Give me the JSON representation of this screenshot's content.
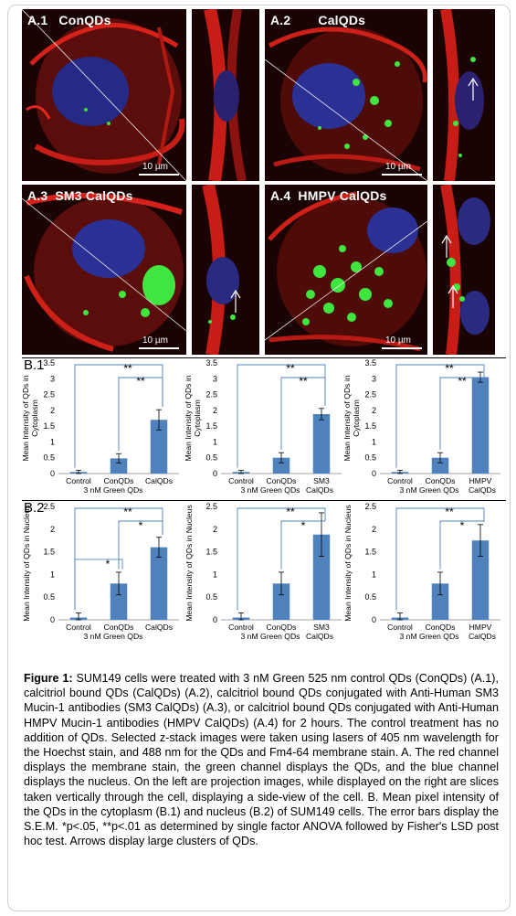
{
  "panels": [
    {
      "id": "A.1",
      "name": "ConQDs",
      "scale": "10 µm"
    },
    {
      "id": "A.2",
      "name": "CalQDs",
      "scale": "10 µm"
    },
    {
      "id": "A.3",
      "name": "SM3 CalQDs",
      "scale": "10 µm"
    },
    {
      "id": "A.4",
      "name": "HMPV CalQDs",
      "scale": "10 µm"
    }
  ],
  "section_labels": {
    "b1": "B.1",
    "b2": "B.2"
  },
  "chart_data": [
    {
      "type": "bar",
      "row": "B.1",
      "ylabel": "Mean Intensity of QDs in Cytoplasm",
      "xlabel": "3 nM Green QDs",
      "ylim": [
        0,
        3.5
      ],
      "yticks": [
        0,
        0.5,
        1,
        1.5,
        2,
        2.5,
        3,
        3.5
      ],
      "categories": [
        "Control",
        "ConQDs",
        "CalQDs"
      ],
      "values": [
        0.05,
        0.48,
        1.7
      ],
      "errors": [
        0.05,
        0.15,
        0.32
      ],
      "significance": [
        {
          "from": 0,
          "to": 2,
          "label": "**"
        },
        {
          "from": 1,
          "to": 2,
          "label": "**"
        }
      ]
    },
    {
      "type": "bar",
      "row": "B.1",
      "ylabel": "Mean Intensity of QDs in Cytoplasm",
      "xlabel": "3 nM Green QDs",
      "ylim": [
        0,
        3.5
      ],
      "yticks": [
        0,
        0.5,
        1,
        1.5,
        2,
        2.5,
        3,
        3.5
      ],
      "categories": [
        "Control",
        "ConQDs",
        "SM3CalQDs"
      ],
      "values": [
        0.05,
        0.5,
        1.88
      ],
      "errors": [
        0.05,
        0.16,
        0.18
      ],
      "significance": [
        {
          "from": 0,
          "to": 2,
          "label": "**"
        },
        {
          "from": 1,
          "to": 2,
          "label": "**"
        }
      ]
    },
    {
      "type": "bar",
      "row": "B.1",
      "ylabel": "Mean Intensity of QDs in Cytoplasm",
      "xlabel": "3 nM Green QDs",
      "ylim": [
        0,
        3.5
      ],
      "yticks": [
        0,
        0.5,
        1,
        1.5,
        2,
        2.5,
        3,
        3.5
      ],
      "categories": [
        "Control",
        "ConQDs",
        "HMPVCalQDs"
      ],
      "values": [
        0.05,
        0.5,
        3.05
      ],
      "errors": [
        0.05,
        0.16,
        0.16
      ],
      "significance": [
        {
          "from": 0,
          "to": 2,
          "label": "**"
        },
        {
          "from": 1,
          "to": 2,
          "label": "**"
        }
      ]
    },
    {
      "type": "bar",
      "row": "B.2",
      "ylabel": "Mean Intensity of QDs in Nucleus",
      "xlabel": "3 nM Green QDs",
      "ylim": [
        0,
        2.5
      ],
      "yticks": [
        0,
        0.5,
        1,
        1.5,
        2,
        2.5
      ],
      "categories": [
        "Control",
        "ConQDs",
        "CalQDs"
      ],
      "values": [
        0.05,
        0.8,
        1.6
      ],
      "errors": [
        0.1,
        0.25,
        0.22
      ],
      "significance": [
        {
          "from": 0,
          "to": 2,
          "label": "**"
        },
        {
          "from": 1,
          "to": 2,
          "label": "*"
        },
        {
          "from": 0,
          "to": 1,
          "label": "*"
        }
      ]
    },
    {
      "type": "bar",
      "row": "B.2",
      "ylabel": "Mean Intensity of QDs in Nucleus",
      "xlabel": "3 nM Green QDs",
      "ylim": [
        0,
        2.5
      ],
      "yticks": [
        0,
        0.5,
        1,
        1.5,
        2,
        2.5
      ],
      "categories": [
        "Control",
        "ConQDs",
        "SM3CalQDs"
      ],
      "values": [
        0.05,
        0.8,
        1.88
      ],
      "errors": [
        0.1,
        0.25,
        0.48
      ],
      "significance": [
        {
          "from": 0,
          "to": 2,
          "label": "**"
        },
        {
          "from": 1,
          "to": 2,
          "label": "*"
        }
      ]
    },
    {
      "type": "bar",
      "row": "B.2",
      "ylabel": "Mean Intensity of QDs in Nucleus",
      "xlabel": "3 nM Green QDs",
      "ylim": [
        0,
        2.5
      ],
      "yticks": [
        0,
        0.5,
        1,
        1.5,
        2,
        2.5
      ],
      "categories": [
        "Control",
        "ConQDs",
        "HMPVCalQDs"
      ],
      "values": [
        0.05,
        0.8,
        1.75
      ],
      "errors": [
        0.1,
        0.25,
        0.35
      ],
      "significance": [
        {
          "from": 0,
          "to": 2,
          "label": "**"
        },
        {
          "from": 1,
          "to": 2,
          "label": "*"
        }
      ]
    }
  ],
  "caption": {
    "label": "Figure 1:",
    "text": "SUM149 cells were treated with 3 nM Green 525 nm control QDs (ConQDs) (A.1), calcitriol bound QDs (CalQDs) (A.2), calcitriol bound QDs conjugated with Anti-Human SM3 Mucin-1 antibodies (SM3 CalQDs) (A.3), or calcitriol bound QDs conjugated with Anti-Human HMPV Mucin-1 antibodies (HMPV CalQDs) (A.4) for 2 hours. The control treatment has no addition of QDs. Selected z-stack images were taken using lasers of 405 nm wavelength for the Hoechst stain, and 488 nm for the QDs and Fm4-64 membrane stain. A. The red channel displays the membrane stain, the green channel displays the QDs, and the blue channel displays the nucleus. On the left are projection images, while displayed on the right are slices taken vertically through the cell, displaying a side-view of the cell. B. Mean pixel intensity of the QDs in the cytoplasm (B.1) and nucleus (B.2) of SUM149 cells. The error bars display the S.E.M. *p<.05, **p<.01 as determined by single factor ANOVA followed by Fisher's LSD post hoc test. Arrows display large clusters of QDs."
  }
}
